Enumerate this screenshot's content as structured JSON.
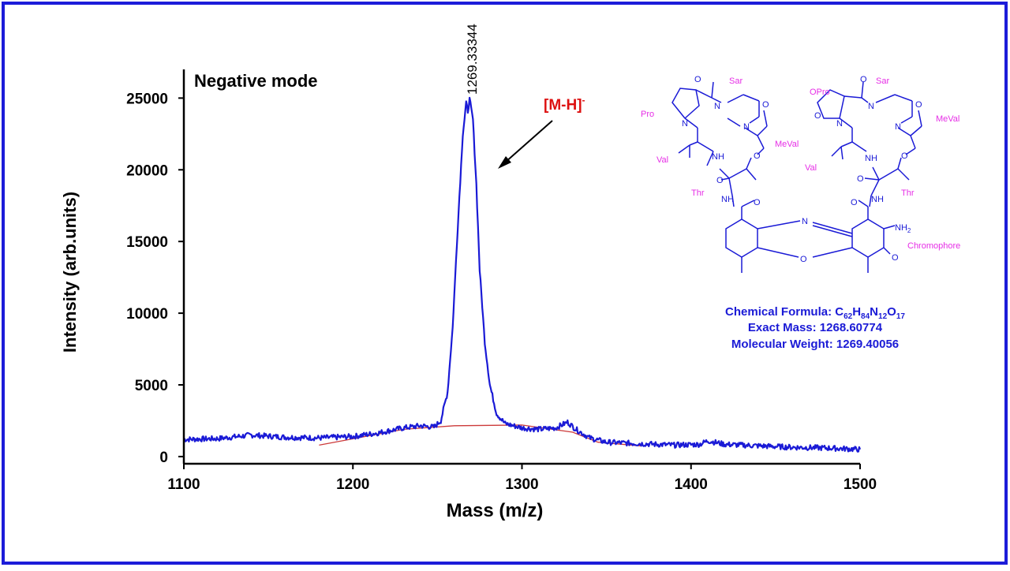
{
  "chart_data": {
    "type": "line",
    "mode_label": "Negative mode",
    "xlabel": "Mass (m/z)",
    "ylabel": "Intensity (arb.units)",
    "xlim": [
      1100,
      1500
    ],
    "ylim": [
      -500,
      27000
    ],
    "x_ticks": [
      1100,
      1200,
      1300,
      1400,
      1500
    ],
    "y_ticks": [
      0,
      5000,
      10000,
      15000,
      20000,
      25000
    ],
    "peak_label": "1269.33344",
    "annotation": {
      "base": "[M-H]",
      "sup": "-"
    },
    "series": [
      {
        "name": "",
        "color": "#1a1ad6",
        "points": [
          [
            1100,
            1200
          ],
          [
            1120,
            1250
          ],
          [
            1140,
            1500
          ],
          [
            1160,
            1350
          ],
          [
            1180,
            1300
          ],
          [
            1200,
            1400
          ],
          [
            1215,
            1650
          ],
          [
            1230,
            2000
          ],
          [
            1240,
            2150
          ],
          [
            1248,
            2050
          ],
          [
            1252,
            2500
          ],
          [
            1256,
            4500
          ],
          [
            1259,
            9000
          ],
          [
            1262,
            16000
          ],
          [
            1265,
            22500
          ],
          [
            1267,
            24600
          ],
          [
            1268,
            24100
          ],
          [
            1269,
            24900
          ],
          [
            1271,
            23500
          ],
          [
            1273,
            19000
          ],
          [
            1275,
            13000
          ],
          [
            1278,
            8000
          ],
          [
            1281,
            5000
          ],
          [
            1285,
            3000
          ],
          [
            1290,
            2300
          ],
          [
            1300,
            2000
          ],
          [
            1310,
            1900
          ],
          [
            1320,
            2000
          ],
          [
            1327,
            2400
          ],
          [
            1332,
            1900
          ],
          [
            1340,
            1300
          ],
          [
            1350,
            1000
          ],
          [
            1370,
            900
          ],
          [
            1390,
            800
          ],
          [
            1405,
            850
          ],
          [
            1410,
            1100
          ],
          [
            1420,
            850
          ],
          [
            1440,
            750
          ],
          [
            1460,
            650
          ],
          [
            1480,
            600
          ],
          [
            1500,
            500
          ]
        ]
      }
    ],
    "baseline": {
      "color": "#cc3a3a",
      "points": [
        [
          1180,
          800
        ],
        [
          1230,
          1900
        ],
        [
          1260,
          2150
        ],
        [
          1300,
          2200
        ],
        [
          1330,
          1700
        ],
        [
          1345,
          1000
        ],
        [
          1370,
          750
        ]
      ]
    }
  },
  "structure": {
    "left_residues": [
      "Pro",
      "Sar",
      "MeVal",
      "Val",
      "Thr"
    ],
    "right_residues": [
      "OPro",
      "Sar",
      "MeVal",
      "Val",
      "Thr"
    ],
    "atoms": {
      "N": "N",
      "O": "O",
      "NH": "NH",
      "NH2_base": "NH",
      "NH2_sub": "2"
    },
    "chromophore_label": "Chromophore",
    "label_color": "#e62ee6",
    "bond_color": "#1a1ad6"
  },
  "formula_block": {
    "formula_prefix": "Chemical Formula: C",
    "formula_parts": [
      {
        "sub": "62",
        "el": "H"
      },
      {
        "sub": "84",
        "el": "N"
      },
      {
        "sub": "12",
        "el": "O"
      },
      {
        "sub": "17",
        "el": ""
      }
    ],
    "exact_mass": "Exact Mass: 1268.60774",
    "molecular_weight": "Molecular Weight: 1269.40056"
  },
  "colors": {
    "border": "#1c1cd9",
    "annotation_red": "#dd1111",
    "text_blue": "#1a1ad6"
  }
}
